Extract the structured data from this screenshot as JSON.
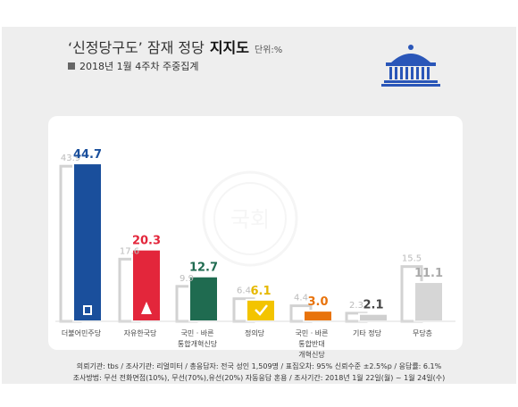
{
  "header": {
    "title": "‘신정당구도’ 잠재 정당",
    "title_bold": "지지도",
    "unit": "단위:%",
    "subtitle": "2018년 1월 4주차 주중집계"
  },
  "chart_data": {
    "type": "bar",
    "categories": [
      "더불어민주당",
      "자유한국당",
      "국민 · 바른 통합개혁신당",
      "정의당",
      "국민 · 바른 통합반대 개혁신당",
      "기타 정당",
      "무당층"
    ],
    "category_lines": [
      [
        "더불어민주당"
      ],
      [
        "자유한국당"
      ],
      [
        "국민 · 바른",
        "통합개혁신당"
      ],
      [
        "정의당"
      ],
      [
        "국민 · 바른",
        "통합반대",
        "개혁신당"
      ],
      [
        "기타 정당"
      ],
      [
        "무당층"
      ]
    ],
    "series": [
      {
        "values": [
          43.9,
          17.6,
          9.9,
          6.4,
          4.4,
          2.3,
          15.5
        ]
      },
      {
        "values": [
          44.7,
          20.3,
          12.7,
          6.1,
          3.0,
          2.1,
          11.1
        ]
      }
    ],
    "value_labels": [
      [
        "43.9",
        "17.6",
        "9.9",
        "6.4",
        "4.4",
        "2.3",
        "15.5"
      ],
      [
        "44.7",
        "20.3",
        "12.7",
        "6.1",
        "3.0",
        "2.1",
        "11.1"
      ]
    ],
    "colors": [
      "#1a4f9c",
      "#e3263b",
      "#1f6b50",
      "#f3c400",
      "#e8730c",
      "#cfcfcf",
      "#d6d6d6"
    ],
    "label_colors": [
      "#1a4f9c",
      "#e3263b",
      "#1f6b50",
      "#e6b800",
      "#e8730c",
      "#444444",
      "#aaaaaa"
    ],
    "prev_color": "#d2d2d2",
    "ylim": [
      0,
      48
    ]
  },
  "footer": {
    "line1": "의뢰기관: tbs / 조사기관: 리얼미터 / 총응답자: 전국 성인 1,509명 / 표집오차: 95% 신뢰수준 ±2.5%p / 응답률: 6.1%",
    "line2": "조사방법: 무선 전화면접(10%), 무선(70%),유선(20%) 자동응답 혼용 / 조사기간: 2018년 1월 22일(월) ~ 1월 24일(수)"
  },
  "watermark": {
    "text": "국회"
  }
}
